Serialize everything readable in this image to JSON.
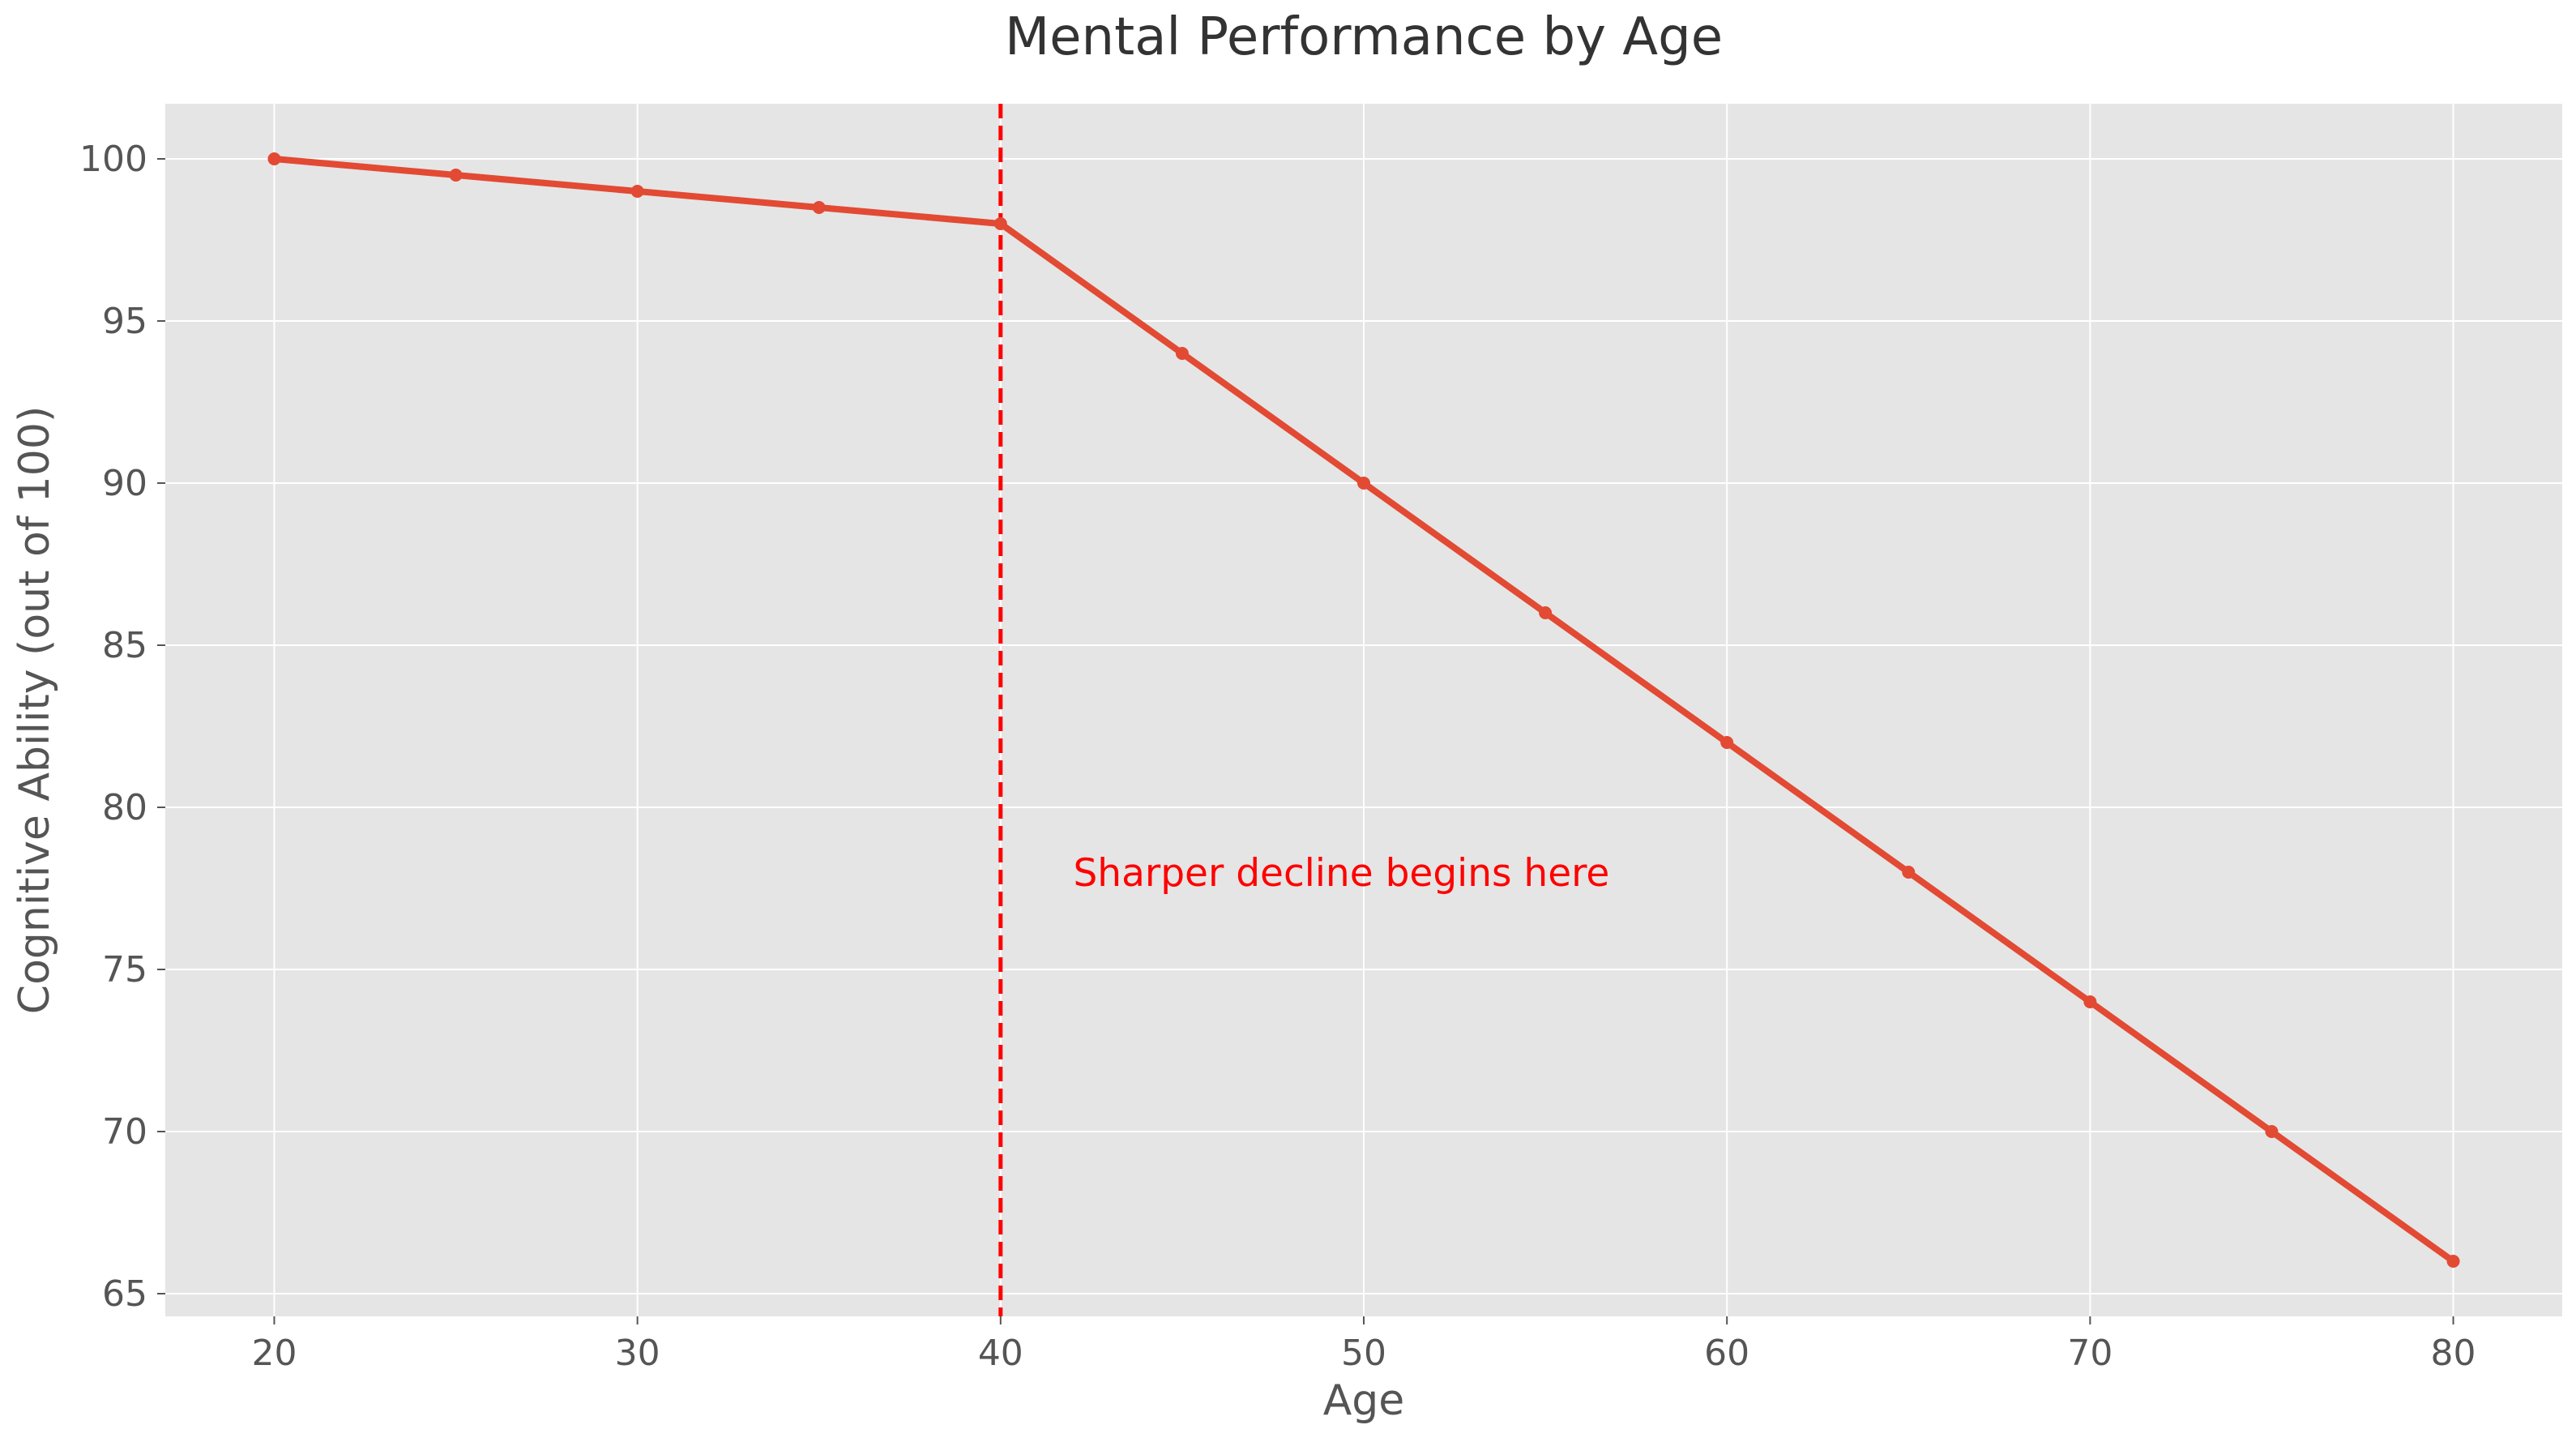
{
  "chart_data": {
    "type": "line",
    "title": "Mental Performance by Age",
    "xlabel": "Age",
    "ylabel": "Cognitive Ability (out of 100)",
    "xlim": [
      17,
      83
    ],
    "ylim": [
      64.3,
      101.7
    ],
    "xticks": [
      20,
      30,
      40,
      50,
      60,
      70,
      80
    ],
    "yticks": [
      65,
      70,
      75,
      80,
      85,
      90,
      95,
      100
    ],
    "grid": true,
    "series": [
      {
        "x": [
          20,
          25,
          30,
          35,
          40,
          45,
          50,
          55,
          60,
          65,
          70,
          75,
          80
        ],
        "values": [
          100,
          99.5,
          99,
          98.5,
          98,
          94,
          90,
          86,
          82,
          78,
          74,
          70,
          66
        ],
        "color": "#E24A33"
      }
    ],
    "vline": {
      "x": 40,
      "color": "#FF0000",
      "style": "dashed"
    },
    "annotation": {
      "text": "Sharper decline begins here",
      "x": 42,
      "y": 78,
      "color": "#FF0000"
    },
    "colors": {
      "plot_background": "#E5E5E5",
      "grid": "#FFFFFF"
    }
  }
}
